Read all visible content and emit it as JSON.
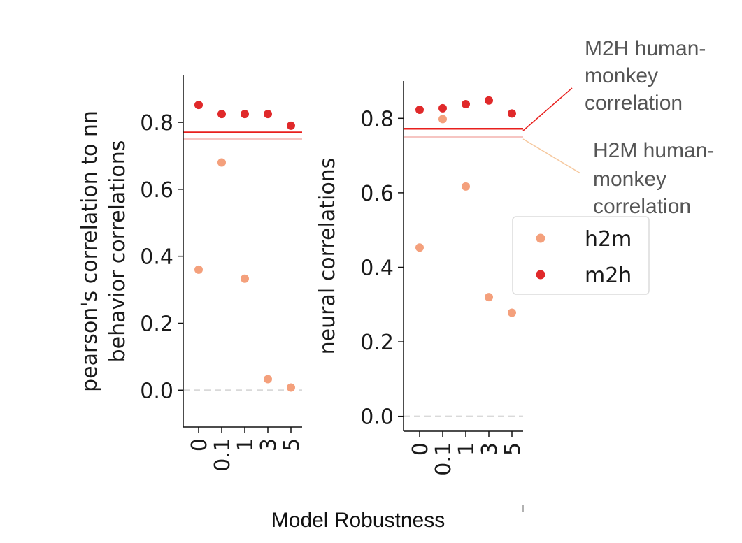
{
  "chart_data": [
    {
      "type": "scatter",
      "ylabel": [
        "pearson's correlation to nn",
        "behavior correlations"
      ],
      "categories": [
        "0",
        "0.1",
        "1",
        "3",
        "5"
      ],
      "ylim": [
        -0.11,
        0.94
      ],
      "yticks": [
        "0.0",
        "0.2",
        "0.4",
        "0.6",
        "0.8"
      ],
      "series": [
        {
          "name": "h2m",
          "color": "#f4a07c",
          "values": [
            0.36,
            0.68,
            0.333,
            0.033,
            0.008
          ]
        },
        {
          "name": "m2h",
          "color": "#e0292a",
          "values": [
            0.852,
            0.825,
            0.825,
            0.825,
            0.79
          ]
        }
      ],
      "reference_lines": [
        {
          "value": 0.77,
          "color": "#e8201e"
        },
        {
          "value": 0.75,
          "color": "#f6c5c2"
        },
        {
          "value": 0.0,
          "color": "#d9d9d9",
          "style": "dashed"
        }
      ]
    },
    {
      "type": "scatter",
      "ylabel": [
        "neural correlations"
      ],
      "categories": [
        "0",
        "0.1",
        "1",
        "3",
        "5"
      ],
      "ylim": [
        -0.04,
        0.9
      ],
      "yticks": [
        "0.0",
        "0.2",
        "0.4",
        "0.6",
        "0.8"
      ],
      "series": [
        {
          "name": "h2m",
          "color": "#f4a07c",
          "values": [
            0.453,
            0.798,
            0.617,
            0.32,
            0.278
          ]
        },
        {
          "name": "m2h",
          "color": "#e0292a",
          "values": [
            0.823,
            0.827,
            0.838,
            0.848,
            0.813
          ]
        }
      ],
      "reference_lines": [
        {
          "value": 0.772,
          "color": "#e8201e"
        },
        {
          "value": 0.75,
          "color": "#f6c5c2"
        },
        {
          "value": 0.0,
          "color": "#d9d9d9",
          "style": "dashed"
        }
      ]
    }
  ],
  "legend": {
    "placement": "right",
    "entries": [
      {
        "label": "h2m",
        "color": "#f4a07c"
      },
      {
        "label": "m2h",
        "color": "#e0292a"
      }
    ]
  },
  "annotations": [
    {
      "lines": [
        "M2H human-",
        "monkey",
        "correlation"
      ],
      "line_color": "#e8201e"
    },
    {
      "lines": [
        "H2M human-",
        "monkey",
        "correlation"
      ],
      "line_color": "#f6c89e"
    }
  ],
  "xlabel": "Model Robustness"
}
